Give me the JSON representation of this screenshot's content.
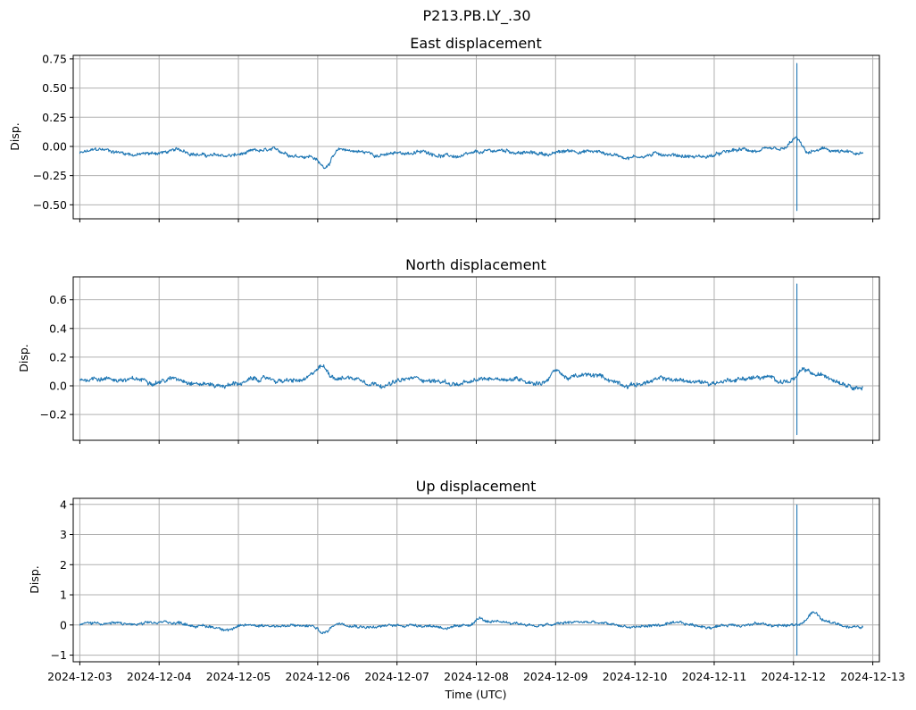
{
  "figure": {
    "suptitle": "P213.PB.LY_.30",
    "xlabel": "Time (UTC)"
  },
  "colors": {
    "series": "#1f77b4",
    "grid": "#b0b0b0"
  },
  "chart_data": [
    {
      "type": "line",
      "title": "East displacement",
      "ylabel": "Disp.",
      "xlim": [
        "2024-12-02T22:00",
        "2024-12-13T02:00"
      ],
      "ylim": [
        -0.62,
        0.78
      ],
      "yticks": [
        -0.5,
        -0.25,
        0.0,
        0.25,
        0.5,
        0.75
      ],
      "ytick_labels": [
        "−0.50",
        "−0.25",
        "0.00",
        "0.25",
        "0.50",
        "0.75"
      ],
      "grid": true,
      "series": [
        {
          "x_start": "2024-12-03T00:00",
          "x_end": "2024-12-12T21:00",
          "baseline": -0.06,
          "noise": 0.025,
          "events": [
            {
              "t": "2024-12-06T02:00",
              "delta": -0.12
            },
            {
              "t": "2024-12-12T01:00",
              "delta": 0.13
            },
            {
              "t": "2024-12-12T03:00",
              "delta": -0.05
            }
          ],
          "spike": {
            "t": "2024-12-12T01:00",
            "min": -0.55,
            "max": 0.71
          }
        }
      ]
    },
    {
      "type": "line",
      "title": "North displacement",
      "ylabel": "Disp.",
      "xlim": [
        "2024-12-02T22:00",
        "2024-12-13T02:00"
      ],
      "ylim": [
        -0.38,
        0.76
      ],
      "yticks": [
        -0.2,
        0.0,
        0.2,
        0.4,
        0.6
      ],
      "ytick_labels": [
        "−0.2",
        "0.0",
        "0.2",
        "0.4",
        "0.6"
      ],
      "grid": true,
      "series": [
        {
          "x_start": "2024-12-03T00:00",
          "x_end": "2024-12-12T21:00",
          "baseline": 0.04,
          "noise": 0.025,
          "events": [
            {
              "t": "2024-12-06T01:00",
              "delta": 0.08
            },
            {
              "t": "2024-12-09T00:00",
              "delta": 0.07
            },
            {
              "t": "2024-12-12T03:00",
              "delta": 0.05
            }
          ],
          "spike": {
            "t": "2024-12-12T01:00",
            "min": -0.34,
            "max": 0.71
          }
        }
      ]
    },
    {
      "type": "line",
      "title": "Up displacement",
      "ylabel": "Disp.",
      "xlim": [
        "2024-12-02T22:00",
        "2024-12-13T02:00"
      ],
      "ylim": [
        -1.22,
        4.2
      ],
      "yticks": [
        -1,
        0,
        1,
        2,
        3,
        4
      ],
      "ytick_labels": [
        "−1",
        "0",
        "1",
        "2",
        "3",
        "4"
      ],
      "grid": true,
      "series": [
        {
          "x_start": "2024-12-03T00:00",
          "x_end": "2024-12-12T21:00",
          "baseline": 0.0,
          "noise": 0.08,
          "events": [
            {
              "t": "2024-12-06T02:00",
              "delta": -0.3
            },
            {
              "t": "2024-12-08T01:00",
              "delta": 0.25
            },
            {
              "t": "2024-12-12T06:00",
              "delta": 0.38
            }
          ],
          "spike": {
            "t": "2024-12-12T01:00",
            "min": -1.0,
            "max": 3.98
          }
        }
      ],
      "xticks": [
        "2024-12-03",
        "2024-12-04",
        "2024-12-05",
        "2024-12-06",
        "2024-12-07",
        "2024-12-08",
        "2024-12-09",
        "2024-12-10",
        "2024-12-11",
        "2024-12-12",
        "2024-12-13"
      ]
    }
  ]
}
